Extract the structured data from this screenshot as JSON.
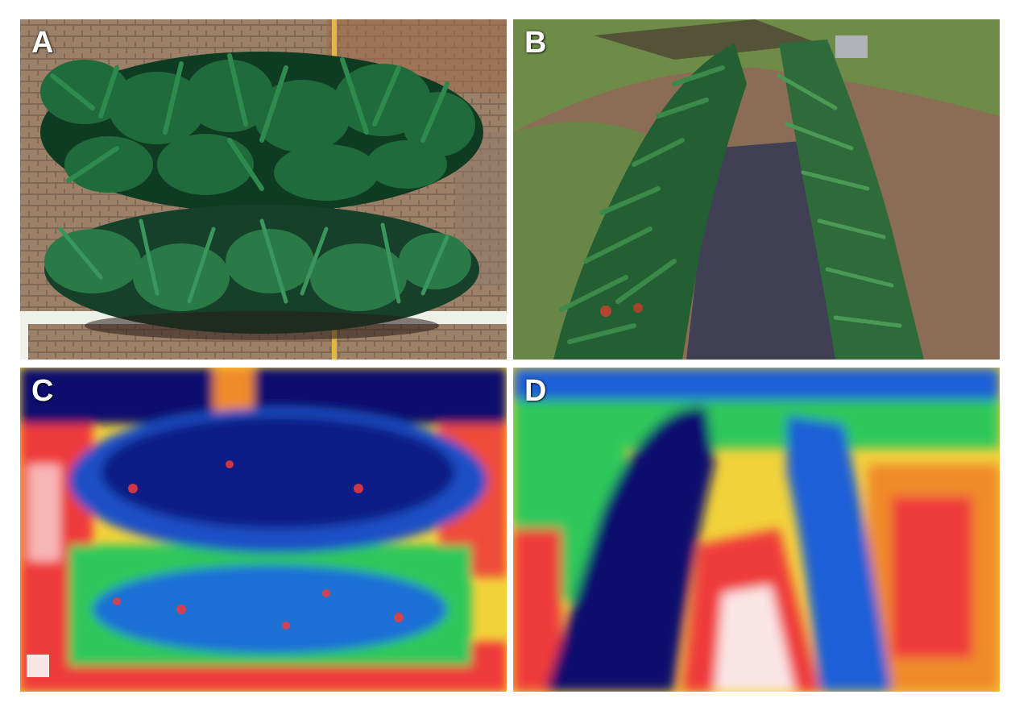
{
  "figure": {
    "panels": [
      {
        "id": "A",
        "label": "A",
        "kind": "aerial RGB photo of maize plots on paved ground"
      },
      {
        "id": "B",
        "label": "B",
        "kind": "oblique RGB photo of two maize rows with dark ground cover between"
      },
      {
        "id": "C",
        "label": "C",
        "kind": "thermal false-colour image of aerial view"
      },
      {
        "id": "D",
        "label": "D",
        "kind": "thermal false-colour image of oblique view"
      }
    ],
    "colors": {
      "background": "#ffffff",
      "foliage_dark": "#0f3b22",
      "foliage": "#1f6b3c",
      "pavement": "#9a7f66",
      "grass": "#6c8a45",
      "mulch": "#3f4054",
      "thermal_cold": "#0a0f6e",
      "thermal_cool": "#1f5fd6",
      "thermal_mid": "#2ec85a",
      "thermal_warm": "#f2e23a",
      "thermal_hot": "#ef3b3b",
      "thermal_hottest": "#fbe6e6"
    }
  }
}
